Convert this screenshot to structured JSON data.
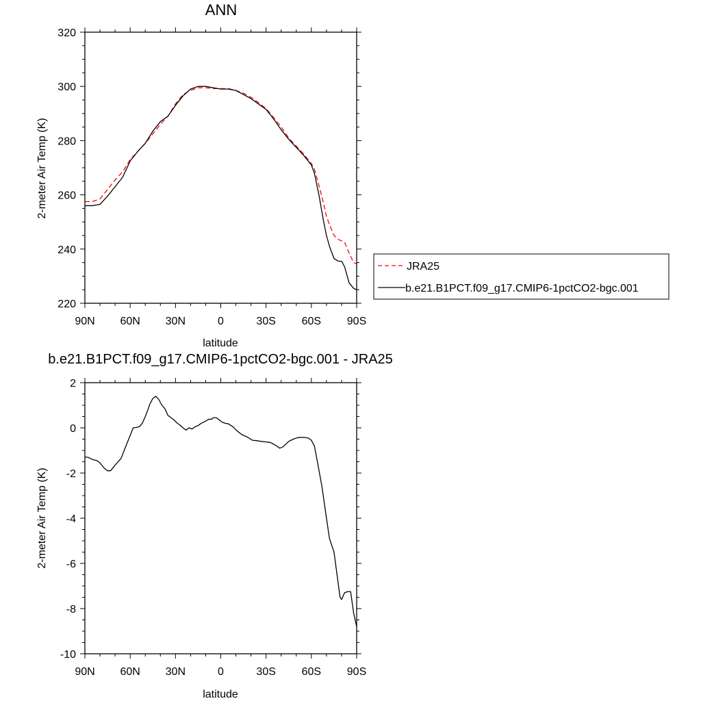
{
  "chart_data": [
    {
      "type": "line",
      "title": "ANN",
      "xlabel": "latitude",
      "ylabel": "2-meter Air Temp (K)",
      "xlim": [
        90,
        -90
      ],
      "ylim": [
        220,
        320
      ],
      "xticks": [
        90,
        60,
        30,
        0,
        -30,
        -60,
        -90
      ],
      "xtick_labels": [
        "90N",
        "60N",
        "30N",
        "0",
        "30S",
        "60S",
        "90S"
      ],
      "yticks": [
        220,
        240,
        260,
        280,
        300,
        320
      ],
      "ytick_labels": [
        "220",
        "240",
        "260",
        "280",
        "300",
        "320"
      ],
      "legend_position": "right",
      "series": [
        {
          "name": "JRA25",
          "color": "#ff0000",
          "dash": "dashed",
          "x": [
            90,
            85,
            80,
            75,
            70,
            65,
            60,
            55,
            50,
            45,
            40,
            35,
            30,
            25,
            20,
            15,
            10,
            5,
            0,
            -5,
            -10,
            -15,
            -20,
            -25,
            -30,
            -35,
            -40,
            -45,
            -50,
            -55,
            -60,
            -62,
            -65,
            -68,
            -70,
            -72,
            -75,
            -78,
            -80,
            -82,
            -85,
            -88,
            -90
          ],
          "y": [
            257.5,
            257.5,
            258.5,
            262,
            265.5,
            268.5,
            273,
            276,
            279,
            282.5,
            286,
            289,
            293.5,
            297,
            298.5,
            299.5,
            299.5,
            299.2,
            299.2,
            299.2,
            298.5,
            297.5,
            296,
            294,
            291.8,
            288.5,
            285,
            281,
            278,
            275,
            271.5,
            269.5,
            263.5,
            257,
            252,
            249,
            245,
            243.5,
            243,
            242.5,
            238.5,
            235,
            234.5
          ]
        },
        {
          "name": "b.e21.B1PCT.f09_g17.CMIP6-1pctCO2-bgc.001",
          "color": "#000000",
          "dash": "solid",
          "x": [
            90,
            85,
            80,
            75,
            70,
            65,
            60,
            55,
            50,
            45,
            40,
            35,
            30,
            25,
            20,
            15,
            10,
            5,
            0,
            -5,
            -10,
            -15,
            -20,
            -25,
            -30,
            -35,
            -40,
            -45,
            -50,
            -55,
            -60,
            -62,
            -65,
            -68,
            -70,
            -72,
            -75,
            -78,
            -80,
            -82,
            -85,
            -88,
            -90
          ],
          "y": [
            256,
            256,
            256.5,
            259.5,
            263,
            266.5,
            272.5,
            276,
            279,
            283.5,
            287,
            289,
            293,
            296.5,
            299,
            300,
            300,
            299.5,
            299,
            299,
            298.5,
            297,
            295.5,
            293.5,
            291.5,
            288,
            284,
            280.5,
            277.5,
            274.5,
            271,
            268,
            260,
            250.5,
            245,
            241,
            236.5,
            235.5,
            235.5,
            233.5,
            227.5,
            225.5,
            225
          ]
        }
      ]
    },
    {
      "type": "line",
      "title": "b.e21.B1PCT.f09_g17.CMIP6-1pctCO2-bgc.001 - JRA25",
      "xlabel": "latitude",
      "ylabel": "2-meter Air Temp (K)",
      "xlim": [
        90,
        -90
      ],
      "ylim": [
        -10,
        2
      ],
      "xticks": [
        90,
        60,
        30,
        0,
        -30,
        -60,
        -90
      ],
      "xtick_labels": [
        "90N",
        "60N",
        "30N",
        "0",
        "30S",
        "60S",
        "90S"
      ],
      "yticks": [
        -10,
        -8,
        -6,
        -4,
        -2,
        0,
        2
      ],
      "ytick_labels": [
        "-10",
        "-8",
        "-6",
        "-4",
        "-2",
        "0",
        "2"
      ],
      "series": [
        {
          "color": "#000000",
          "dash": "solid",
          "x": [
            90,
            88,
            85,
            82,
            80,
            77,
            75,
            73,
            70,
            66,
            64,
            61,
            58,
            56,
            54,
            52,
            50,
            48,
            47,
            45,
            43,
            41,
            39,
            37,
            35,
            33,
            31,
            29,
            27,
            25,
            23,
            21,
            19,
            17,
            15,
            13,
            10,
            8,
            6,
            5,
            3,
            1,
            -1,
            -3,
            -5,
            -8,
            -11,
            -14,
            -18,
            -21,
            -24,
            -27,
            -30,
            -33,
            -35,
            -37,
            -39,
            -41,
            -45,
            -48,
            -51,
            -55,
            -58,
            -60,
            -62,
            -64,
            -67,
            -70,
            -72,
            -75,
            -77,
            -79,
            -80,
            -82,
            -84,
            -86,
            -88,
            -90
          ],
          "y": [
            -1.3,
            -1.3,
            -1.4,
            -1.45,
            -1.55,
            -1.8,
            -1.9,
            -1.9,
            -1.65,
            -1.35,
            -1.0,
            -0.5,
            0.0,
            0.02,
            0.05,
            0.2,
            0.5,
            0.85,
            1.05,
            1.3,
            1.4,
            1.25,
            1.0,
            0.85,
            0.55,
            0.45,
            0.35,
            0.22,
            0.12,
            0.0,
            -0.1,
            0.0,
            -0.05,
            0.05,
            0.1,
            0.2,
            0.3,
            0.38,
            0.38,
            0.45,
            0.45,
            0.35,
            0.25,
            0.2,
            0.18,
            0.05,
            -0.15,
            -0.3,
            -0.42,
            -0.55,
            -0.57,
            -0.6,
            -0.62,
            -0.65,
            -0.72,
            -0.8,
            -0.9,
            -0.85,
            -0.6,
            -0.5,
            -0.43,
            -0.42,
            -0.45,
            -0.55,
            -0.8,
            -1.5,
            -2.6,
            -4.0,
            -4.9,
            -5.5,
            -6.5,
            -7.5,
            -7.6,
            -7.3,
            -7.25,
            -7.25,
            -8.2,
            -8.8
          ]
        }
      ]
    }
  ]
}
